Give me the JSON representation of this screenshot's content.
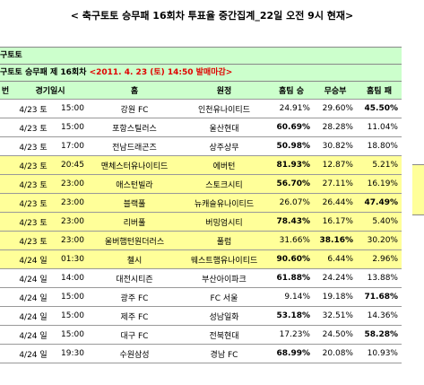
{
  "header": {
    "title": "< 축구토토 승무패 16회차 투표율 중간집계_22일 오전 9시 현재>",
    "section": "구토토",
    "subtitle": "구토토 승무패 제 16회차",
    "deadline": "<2011. 4. 23 (토) 14:50 발매마감>"
  },
  "table": {
    "columns": [
      "번",
      "경기일시",
      "홈",
      "원정",
      "홈팀 승",
      "무승부",
      "홈팀 패"
    ],
    "highlight_color": "#ffff99",
    "rows": [
      {
        "date": "4/23 토",
        "time": "15:00",
        "home": "강원 FC",
        "away": "인천유나이티드",
        "win": "24.91%",
        "draw": "29.60%",
        "lose": "45.50%",
        "highlight": false
      },
      {
        "date": "4/23 토",
        "time": "15:00",
        "home": "포항스틸러스",
        "away": "울산현대",
        "win": "60.69%",
        "draw": "28.28%",
        "lose": "11.04%",
        "highlight": false
      },
      {
        "date": "4/23 토",
        "time": "17:00",
        "home": "전남드래곤즈",
        "away": "상주상무",
        "win": "50.98%",
        "draw": "30.82%",
        "lose": "18.80%",
        "highlight": false
      },
      {
        "date": "4/23 토",
        "time": "20:45",
        "home": "맨체스터유나이티드",
        "away": "에버턴",
        "win": "81.93%",
        "draw": "12.87%",
        "lose": "5.21%",
        "highlight": true
      },
      {
        "date": "4/23 토",
        "time": "23:00",
        "home": "애스턴빌라",
        "away": "스토크시티",
        "win": "56.70%",
        "draw": "27.11%",
        "lose": "16.19%",
        "highlight": true
      },
      {
        "date": "4/23 토",
        "time": "23:00",
        "home": "블랙풀",
        "away": "뉴캐슬유나이티드",
        "win": "26.07%",
        "draw": "26.44%",
        "lose": "47.49%",
        "highlight": true
      },
      {
        "date": "4/23 토",
        "time": "23:00",
        "home": "리버풀",
        "away": "버밍엄시티",
        "win": "78.43%",
        "draw": "16.17%",
        "lose": "5.40%",
        "highlight": true
      },
      {
        "date": "4/23 토",
        "time": "23:00",
        "home": "울버햄턴원더러스",
        "away": "풀럼",
        "win": "31.66%",
        "draw": "38.16%",
        "lose": "30.20%",
        "highlight": true
      },
      {
        "date": "4/24 일",
        "time": "01:30",
        "home": "첼시",
        "away": "웨스트햄유나이티드",
        "win": "90.60%",
        "draw": "6.44%",
        "lose": "2.96%",
        "highlight": true
      },
      {
        "date": "4/24 일",
        "time": "14:00",
        "home": "대전시티즌",
        "away": "부산아이파크",
        "win": "61.88%",
        "draw": "24.24%",
        "lose": "13.88%",
        "highlight": false
      },
      {
        "date": "4/24 일",
        "time": "15:00",
        "home": "광주 FC",
        "away": "FC 서울",
        "win": "9.14%",
        "draw": "19.18%",
        "lose": "71.68%",
        "highlight": false
      },
      {
        "date": "4/24 일",
        "time": "15:00",
        "home": "제주 FC",
        "away": "성남일화",
        "win": "53.18%",
        "draw": "32.51%",
        "lose": "14.36%",
        "highlight": false
      },
      {
        "date": "4/24 일",
        "time": "15:00",
        "home": "대구 FC",
        "away": "전북현대",
        "win": "17.23%",
        "draw": "24.50%",
        "lose": "58.28%",
        "highlight": false
      },
      {
        "date": "4/24 일",
        "time": "19:30",
        "home": "수원삼성",
        "away": "경남 FC",
        "win": "68.99%",
        "draw": "20.08%",
        "lose": "10.93%",
        "highlight": false
      }
    ]
  }
}
